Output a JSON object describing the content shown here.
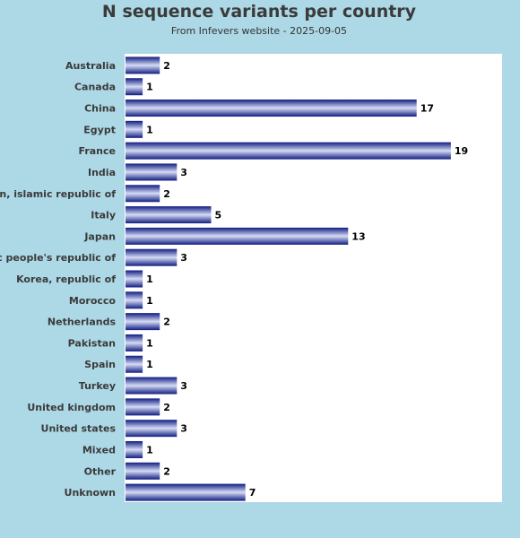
{
  "chart_data": {
    "type": "bar",
    "orientation": "horizontal",
    "title": "N sequence variants per country",
    "subtitle": "From Infevers website - 2025-09-05",
    "xlabel": "",
    "ylabel": "",
    "categories": [
      "Australia",
      "Canada",
      "China",
      "Egypt",
      "France",
      "India",
      "Iran, islamic republic of",
      "Italy",
      "Japan",
      "Korea, democratic people's republic of",
      "Korea, republic of",
      "Morocco",
      "Netherlands",
      "Pakistan",
      "Spain",
      "Turkey",
      "United kingdom",
      "United states",
      "Mixed",
      "Other",
      "Unknown"
    ],
    "values": [
      2,
      1,
      17,
      1,
      19,
      3,
      2,
      5,
      13,
      3,
      1,
      1,
      2,
      1,
      1,
      3,
      2,
      3,
      1,
      2,
      7
    ],
    "xlim": [
      0,
      22
    ],
    "grid": false,
    "legend": "none",
    "colors": {
      "background": "#add8e6",
      "plot_background": "#ffffff",
      "bar_dark": "#1c2a8c",
      "bar_light": "#d2d8f4"
    }
  }
}
